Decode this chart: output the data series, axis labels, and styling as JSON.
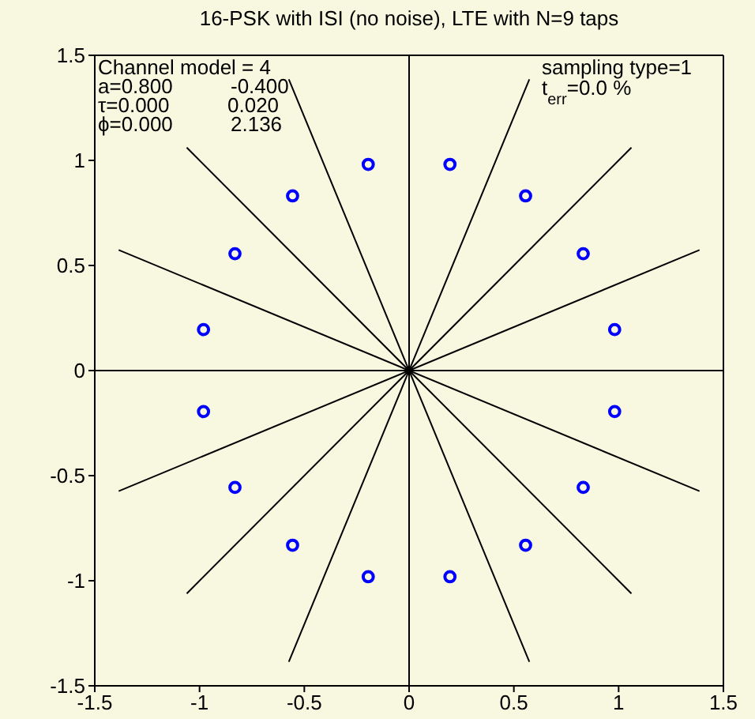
{
  "chart_data": {
    "type": "scatter",
    "title": "16-PSK with ISI (no noise), LTE with N=9 taps",
    "annotations": [
      "Channel model = 4",
      "a=0.800",
      "-0.400",
      "τ=0.000",
      "0.020",
      "ϕ=0.000",
      "2.136",
      "sampling type=1",
      "t$_{err}$=0.0 %"
    ],
    "xlim": [
      -1.5,
      1.5
    ],
    "ylim": [
      -1.5,
      1.5
    ],
    "xticks": [
      -1.5,
      -1,
      -0.5,
      0,
      0.5,
      1,
      1.5
    ],
    "yticks": [
      -1.5,
      -1,
      -0.5,
      0,
      0.5,
      1,
      1.5
    ],
    "grid": false,
    "legend": false,
    "series": [
      {
        "marker": "circle",
        "color": "#0000ff",
        "x": [
          0.981,
          0.831,
          0.556,
          0.195,
          -0.195,
          -0.556,
          -0.831,
          -0.981,
          -0.981,
          -0.831,
          -0.556,
          -0.195,
          0.195,
          0.556,
          0.831,
          0.981
        ],
        "values": [
          0.195,
          0.556,
          0.831,
          0.981,
          0.981,
          0.831,
          0.556,
          0.195,
          -0.195,
          -0.556,
          -0.831,
          -0.981,
          -0.981,
          -0.831,
          -0.556,
          -0.195
        ]
      },
      {
        "type": "line",
        "color": "#000000",
        "x": [
          -1.5,
          1.5
        ],
        "values": [
          0,
          0
        ]
      },
      {
        "type": "line",
        "color": "#000000",
        "x": [
          -1.386,
          1.386
        ],
        "values": [
          -0.574,
          0.574
        ]
      },
      {
        "type": "line",
        "color": "#000000",
        "x": [
          -1.061,
          1.061
        ],
        "values": [
          -1.061,
          1.061
        ]
      },
      {
        "type": "line",
        "color": "#000000",
        "x": [
          -0.574,
          0.574
        ],
        "values": [
          -1.386,
          1.386
        ]
      },
      {
        "type": "line",
        "color": "#000000",
        "x": [
          0,
          0
        ],
        "values": [
          -1.5,
          1.5
        ]
      },
      {
        "type": "line",
        "color": "#000000",
        "x": [
          0.574,
          -0.574
        ],
        "values": [
          -1.386,
          1.386
        ]
      },
      {
        "type": "line",
        "color": "#000000",
        "x": [
          1.061,
          -1.061
        ],
        "values": [
          -1.061,
          1.061
        ]
      },
      {
        "type": "line",
        "color": "#000000",
        "x": [
          1.386,
          -1.386
        ],
        "values": [
          -0.574,
          0.574
        ]
      }
    ]
  }
}
